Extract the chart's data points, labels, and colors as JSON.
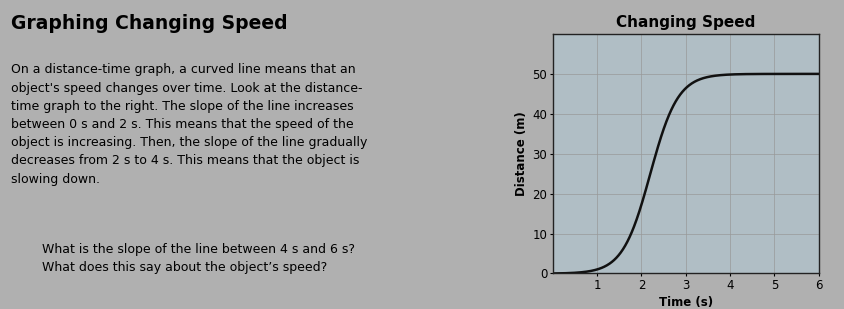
{
  "title": "Changing Speed",
  "xlabel": "Time (s)",
  "ylabel": "Distance (m)",
  "xlim": [
    0,
    6
  ],
  "ylim": [
    0,
    60
  ],
  "xticks": [
    1,
    2,
    3,
    4,
    5,
    6
  ],
  "yticks": [
    0,
    10,
    20,
    30,
    40,
    50
  ],
  "curve_color": "#111111",
  "curve_linewidth": 1.8,
  "grid_color": "#999999",
  "plot_bg_color": "#b0bec5",
  "page_bg_color": "#b0b0b0",
  "text_bg_color": "#c8c8c8",
  "title_fontsize": 11,
  "axis_label_fontsize": 8.5,
  "tick_fontsize": 8.5,
  "main_title": "Graphing Changing Speed",
  "main_title_fontsize": 13.5,
  "body_text": "On a distance-time graph, a curved line means that an\nobject's speed changes over time. Look at the distance-\ntime graph to the right. The slope of the line increases\nbetween 0 s and 2 s. This means that the speed of the\nobject is increasing. Then, the slope of the line gradually\ndecreases from 2 s to 4 s. This means that the object is\nslowing down.",
  "body_fontsize": 9.0,
  "question_text": "What is the slope of the line between 4 s and 6 s?\nWhat does this say about the object’s speed?",
  "question_fontsize": 9.0,
  "sigmoid_k": 3.2,
  "sigmoid_t0": 2.2,
  "sigmoid_max": 50.0
}
